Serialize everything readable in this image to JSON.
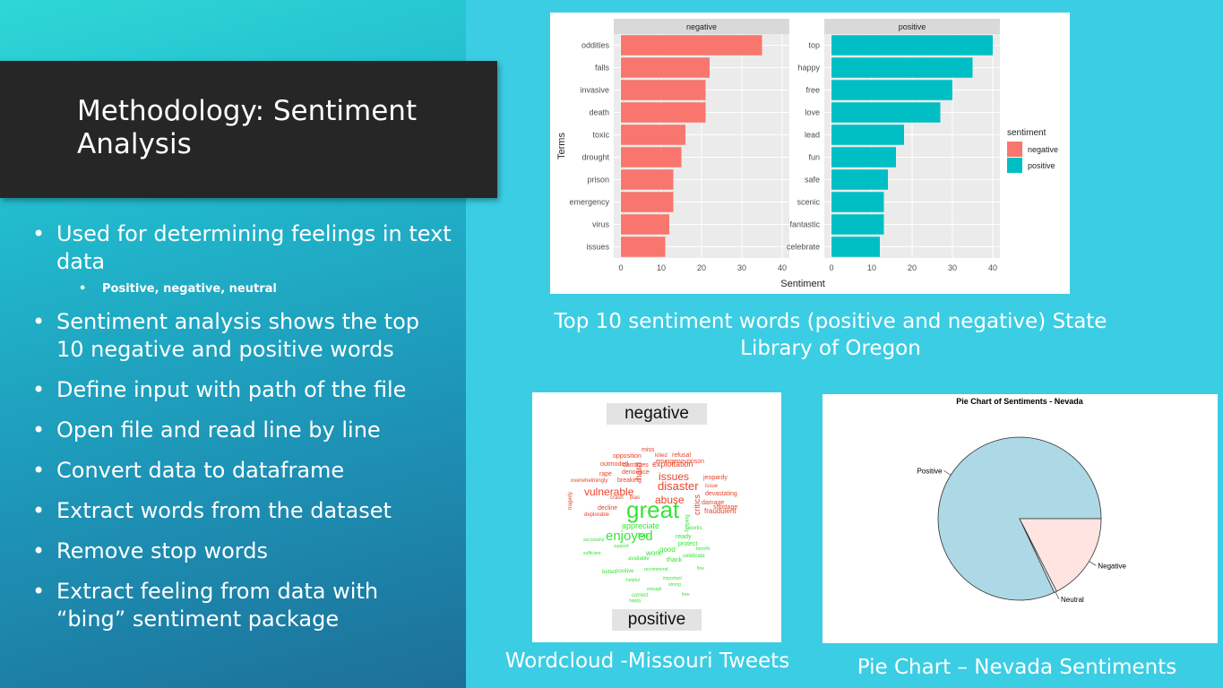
{
  "slide": {
    "title": "Methodology: Sentiment Analysis",
    "bullets": [
      "Used for determining feelings in text data",
      "Sentiment analysis shows the top 10 negative and positive words",
      "Define input with path of the file",
      "Open file and read line by line",
      "Convert data to dataframe",
      "Extract words from the dataset",
      "Remove stop words",
      "Extract feeling from data with “bing” sentiment package"
    ],
    "sub_bullet": "Positive, negative, neutral",
    "bullet_glyph": "•",
    "captions": {
      "bar": "Top 10 sentiment words (positive and negative) State Library of Oregon",
      "wordcloud": "Wordcloud -Missouri Tweets",
      "pie": "Pie Chart – Nevada Sentiments"
    }
  },
  "chart_data": [
    {
      "type": "bar",
      "orientation": "horizontal",
      "ylabel": "Terms",
      "xlabel": "Sentiment",
      "xlim": [
        0,
        40
      ],
      "xticks": [
        0,
        10,
        20,
        30,
        40
      ],
      "legend": {
        "title": "sentiment",
        "position": "right",
        "entries": [
          "negative",
          "positive"
        ]
      },
      "colors": {
        "negative": "#f8766d",
        "positive": "#00bfc4"
      },
      "facets": [
        {
          "name": "negative",
          "categories": [
            "oddities",
            "falls",
            "invasive",
            "death",
            "toxic",
            "drought",
            "prison",
            "emergency",
            "virus",
            "issues"
          ],
          "values": [
            35,
            22,
            21,
            21,
            16,
            15,
            13,
            13,
            12,
            11
          ]
        },
        {
          "name": "positive",
          "categories": [
            "top",
            "happy",
            "free",
            "love",
            "lead",
            "fun",
            "safe",
            "scenic",
            "fantastic",
            "celebrate"
          ],
          "values": [
            40,
            35,
            30,
            27,
            18,
            16,
            14,
            13,
            13,
            12
          ]
        }
      ]
    },
    {
      "type": "pie",
      "title": "Pie Chart of Sentiments - Nevada",
      "slices": [
        {
          "label": "Positive",
          "value": 82,
          "color": "#add8e6"
        },
        {
          "label": "Neutral",
          "value": 0.5,
          "color": "#f0f8ff"
        },
        {
          "label": "Negative",
          "value": 17.5,
          "color": "#ffe4e1"
        }
      ]
    }
  ],
  "wordcloud": {
    "headers": [
      "negative",
      "positive"
    ],
    "colors": {
      "negative": "#e8442b",
      "positive": "#39e33a"
    },
    "words": [
      {
        "t": "great",
        "s": "positive"
      },
      {
        "t": "enjoyed",
        "s": "positive"
      },
      {
        "t": "vulnerable",
        "s": "negative"
      },
      {
        "t": "disaster",
        "s": "negative"
      },
      {
        "t": "issues",
        "s": "negative"
      },
      {
        "t": "abuse",
        "s": "negative"
      },
      {
        "t": "hard",
        "s": "negative"
      },
      {
        "t": "exploitation",
        "s": "negative"
      },
      {
        "t": "critics",
        "s": "negative"
      },
      {
        "t": "fraudulent",
        "s": "negative"
      },
      {
        "t": "shortage",
        "s": "negative"
      },
      {
        "t": "devastating",
        "s": "negative"
      },
      {
        "t": "damage",
        "s": "negative"
      },
      {
        "t": "jeopardy",
        "s": "negative"
      },
      {
        "t": "issue",
        "s": "negative"
      },
      {
        "t": "opposition",
        "s": "negative"
      },
      {
        "t": "outmoded",
        "s": "negative"
      },
      {
        "t": "damages",
        "s": "negative"
      },
      {
        "t": "denounce",
        "s": "negative"
      },
      {
        "t": "rape",
        "s": "negative"
      },
      {
        "t": "breaking",
        "s": "negative"
      },
      {
        "t": "overwhelmingly",
        "s": "negative"
      },
      {
        "t": "miss",
        "s": "negative"
      },
      {
        "t": "killed",
        "s": "negative"
      },
      {
        "t": "refusal",
        "s": "negative"
      },
      {
        "t": "emergency",
        "s": "negative"
      },
      {
        "t": "prison",
        "s": "negative"
      },
      {
        "t": "crash",
        "s": "negative"
      },
      {
        "t": "bias",
        "s": "negative"
      },
      {
        "t": "decline",
        "s": "negative"
      },
      {
        "t": "deplorable",
        "s": "negative"
      },
      {
        "t": "tragedy",
        "s": "negative"
      },
      {
        "t": "appreciate",
        "s": "positive"
      },
      {
        "t": "ready",
        "s": "positive"
      },
      {
        "t": "protect",
        "s": "positive"
      },
      {
        "t": "good",
        "s": "positive"
      },
      {
        "t": "works",
        "s": "positive"
      },
      {
        "t": "work",
        "s": "positive"
      },
      {
        "t": "thank",
        "s": "positive"
      },
      {
        "t": "available",
        "s": "positive"
      },
      {
        "t": "celebrate",
        "s": "positive"
      },
      {
        "t": "helping",
        "s": "positive"
      },
      {
        "t": "successful",
        "s": "positive"
      },
      {
        "t": "sufficient",
        "s": "positive"
      },
      {
        "t": "support",
        "s": "positive"
      },
      {
        "t": "positive",
        "s": "positive"
      },
      {
        "t": "benefit",
        "s": "positive"
      },
      {
        "t": "important",
        "s": "positive"
      },
      {
        "t": "fine",
        "s": "positive"
      },
      {
        "t": "recommend",
        "s": "positive"
      },
      {
        "t": "helpful",
        "s": "positive"
      },
      {
        "t": "better",
        "s": "positive"
      },
      {
        "t": "enough",
        "s": "positive"
      },
      {
        "t": "correct",
        "s": "positive"
      },
      {
        "t": "happy",
        "s": "positive"
      },
      {
        "t": "top",
        "s": "positive"
      },
      {
        "t": "strong",
        "s": "positive"
      },
      {
        "t": "free",
        "s": "positive"
      }
    ]
  }
}
